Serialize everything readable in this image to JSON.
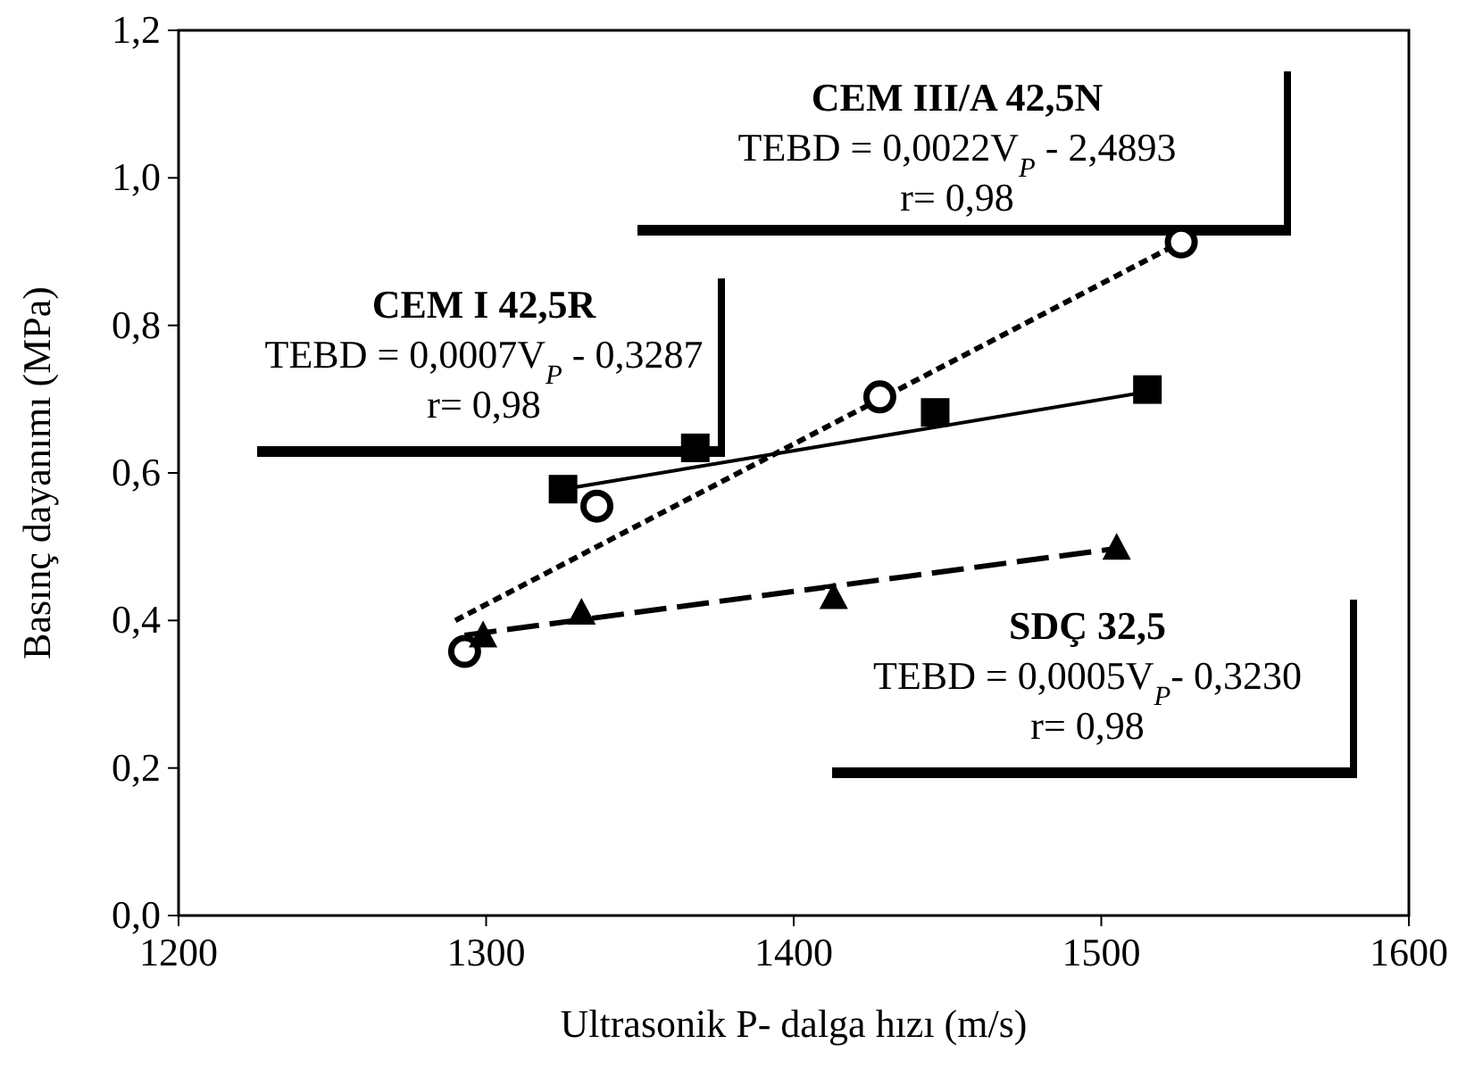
{
  "chart_data": {
    "type": "scatter",
    "xlabel": "Ultrasonik P- dalga hızı (m/s)",
    "ylabel": "Basınç dayanımı (MPa)",
    "xlim": [
      1200,
      1600
    ],
    "xticks": [
      1200,
      1300,
      1400,
      1500,
      1600
    ],
    "ylim": [
      0,
      1.2
    ],
    "yticks": [
      {
        "value": 0,
        "label": "0,0"
      },
      {
        "value": 0.2,
        "label": "0,2"
      },
      {
        "value": 0.4,
        "label": "0,4"
      },
      {
        "value": 0.6,
        "label": "0,6"
      },
      {
        "value": 0.8,
        "label": "0,8"
      },
      {
        "value": 1.0,
        "label": "1,0"
      },
      {
        "value": 1.2,
        "label": "1,2"
      }
    ],
    "grid": false,
    "annotations": [
      "CEM I 42,5R\nTEBD = 0,0007V$_{P}$ - 0,3287\nr= 0,98",
      "CEM III/A 42,5N\nTEBD = 0,0022V$_{P}$ - 2,4893\nr= 0,98",
      "SDÇ 32,5\nTEBD = 0,0005V$_{P}$- 0,3230\nr= 0,98"
    ],
    "series": [
      {
        "type": "line",
        "color": "#000000",
        "line_style": "solid",
        "x": [
          1325,
          1515
        ],
        "values": [
          0.578,
          0.71
        ]
      },
      {
        "type": "line",
        "color": "#000000",
        "line_style": "dotted",
        "x": [
          1290,
          1526
        ],
        "values": [
          0.4,
          0.913
        ]
      },
      {
        "type": "line",
        "color": "#000000",
        "line_style": "dashed",
        "x": [
          1293,
          1504
        ],
        "values": [
          0.38,
          0.497
        ]
      },
      {
        "color": "#000000",
        "marker": "square",
        "x": [
          1325,
          1368,
          1446,
          1515
        ],
        "values": [
          0.578,
          0.634,
          0.682,
          0.713
        ]
      },
      {
        "color": "#000000",
        "marker": "circle",
        "x": [
          1293,
          1336,
          1428,
          1526
        ],
        "values": [
          0.358,
          0.555,
          0.703,
          0.913
        ]
      },
      {
        "color": "#000000",
        "marker": "triangle",
        "x": [
          1299,
          1331,
          1413,
          1505
        ],
        "values": [
          0.378,
          0.409,
          0.43,
          0.497
        ]
      }
    ]
  }
}
